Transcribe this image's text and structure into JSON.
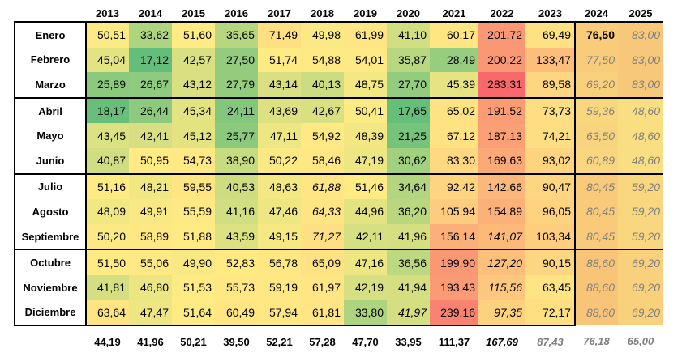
{
  "years": [
    "2013",
    "2014",
    "2015",
    "2016",
    "2017",
    "2018",
    "2019",
    "2020",
    "2021",
    "2022",
    "2023",
    "2024",
    "2025"
  ],
  "rows": [
    {
      "month": "Enero",
      "values": [
        "50,51",
        "33,62",
        "51,60",
        "35,65",
        "71,49",
        "49,98",
        "61,99",
        "41,10",
        "60,17",
        "201,72",
        "69,49",
        "76,50",
        "83,00"
      ]
    },
    {
      "month": "Febrero",
      "values": [
        "45,04",
        "17,12",
        "42,57",
        "27,50",
        "51,74",
        "54,88",
        "54,01",
        "35,87",
        "28,49",
        "200,22",
        "133,47",
        "77,50",
        "83,00"
      ]
    },
    {
      "month": "Marzo",
      "values": [
        "25,89",
        "26,67",
        "43,12",
        "27,79",
        "43,14",
        "40,13",
        "48,75",
        "27,70",
        "45,39",
        "283,31",
        "89,58",
        "69,20",
        "83,00"
      ]
    },
    {
      "month": "Abril",
      "values": [
        "18,17",
        "26,44",
        "45,34",
        "24,11",
        "43,69",
        "42,67",
        "50,41",
        "17,65",
        "65,02",
        "191,52",
        "73,73",
        "59,36",
        "48,60"
      ]
    },
    {
      "month": "Mayo",
      "values": [
        "43,45",
        "42,41",
        "45,12",
        "25,77",
        "47,11",
        "54,92",
        "48,39",
        "21,25",
        "67,12",
        "187,13",
        "74,21",
        "63,50",
        "48,60"
      ]
    },
    {
      "month": "Junio",
      "values": [
        "40,87",
        "50,95",
        "54,73",
        "38,90",
        "50,22",
        "58,46",
        "47,19",
        "30,62",
        "83,30",
        "169,63",
        "93,02",
        "60,89",
        "48,60"
      ]
    },
    {
      "month": "Julio",
      "values": [
        "51,16",
        "48,21",
        "59,55",
        "40,53",
        "48,63",
        "61,88",
        "51,46",
        "34,64",
        "92,42",
        "142,66",
        "90,47",
        "80,45",
        "59,20"
      ]
    },
    {
      "month": "Agosto",
      "values": [
        "48,09",
        "49,91",
        "55,59",
        "41,16",
        "47,46",
        "64,33",
        "44,96",
        "36,20",
        "105,94",
        "154,89",
        "96,05",
        "80,45",
        "59,20"
      ]
    },
    {
      "month": "Septiembre",
      "values": [
        "50,20",
        "58,89",
        "51,88",
        "43,59",
        "49,15",
        "71,27",
        "42,11",
        "41,96",
        "156,14",
        "141,07",
        "103,34",
        "80,45",
        "59,20"
      ]
    },
    {
      "month": "Octubre",
      "values": [
        "51,50",
        "55,06",
        "49,90",
        "52,83",
        "56,78",
        "65,09",
        "47,16",
        "36,56",
        "199,90",
        "127,20",
        "90,15",
        "88,60",
        "69,20"
      ]
    },
    {
      "month": "Noviembre",
      "values": [
        "41,81",
        "46,80",
        "51,53",
        "55,73",
        "59,19",
        "61,97",
        "42,19",
        "41,94",
        "193,43",
        "115,56",
        "63,45",
        "88,60",
        "69,20"
      ]
    },
    {
      "month": "Diciembre",
      "values": [
        "63,64",
        "47,47",
        "51,64",
        "60,49",
        "57,94",
        "61,81",
        "33,80",
        "41,97",
        "239,16",
        "97,35",
        "72,17",
        "88,60",
        "69,20"
      ]
    }
  ],
  "italic_cells": [
    [
      6,
      5
    ],
    [
      7,
      5
    ],
    [
      8,
      5
    ],
    [
      8,
      9
    ],
    [
      9,
      9
    ],
    [
      10,
      9
    ],
    [
      11,
      9
    ],
    [
      11,
      7
    ]
  ],
  "bold_cells": [
    [
      0,
      11
    ]
  ],
  "totals": [
    "44,19",
    "41,96",
    "50,21",
    "39,50",
    "52,21",
    "57,28",
    "47,70",
    "33,95",
    "111,37",
    "167,69",
    "87,43",
    "76,18",
    "65,00"
  ],
  "totals_italic": [
    9
  ],
  "totals_gray": [
    10,
    11,
    12
  ],
  "colors": {
    "grid_cells": "heat-scale green-yellow-red",
    "projection_cells": "#f9d48a",
    "projection_text": "#7f7f7f"
  }
}
